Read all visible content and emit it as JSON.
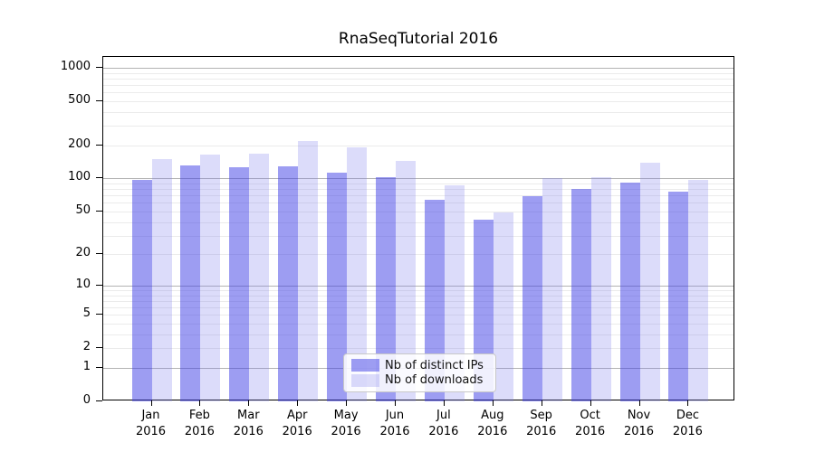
{
  "chart_data": {
    "type": "bar",
    "title": "RnaSeqTutorial 2016",
    "yscale": "log1p",
    "grid": true,
    "ylim": [
      0,
      1250
    ],
    "yticks": [
      1000,
      500,
      200,
      100,
      50,
      20,
      10,
      5,
      2,
      1,
      0
    ],
    "categories": [
      "Jan",
      "Feb",
      "Mar",
      "Apr",
      "May",
      "Jun",
      "Jul",
      "Aug",
      "Sep",
      "Oct",
      "Nov",
      "Dec"
    ],
    "year_label": "2016",
    "legend_position": "lower center",
    "series": [
      {
        "name": "Nb of distinct IPs",
        "color": "rgba(60,60,230,0.5)",
        "values": [
          97,
          131,
          126,
          130,
          112,
          103,
          64,
          42,
          69,
          81,
          92,
          76
        ]
      },
      {
        "name": "Nb of downloads",
        "color": "rgba(125,125,235,0.27)",
        "values": [
          150,
          165,
          168,
          220,
          192,
          145,
          87,
          49,
          101,
          102,
          138,
          97
        ]
      }
    ],
    "colors": {
      "bar_distinct_ips": "#9e9ef2",
      "bar_downloads": "#dbdbfa",
      "major_grid": "#b3b3b3",
      "minor_grid": "#ebebeb",
      "spine": "#000000",
      "text": "#000000"
    }
  }
}
